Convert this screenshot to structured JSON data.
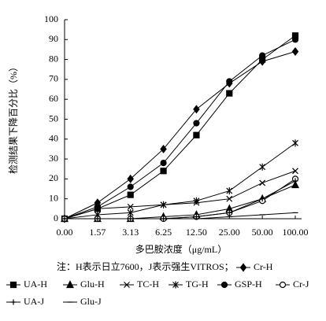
{
  "chart_data": {
    "type": "line",
    "y_label": "检测结果下降百分比（%）",
    "x_label": "多巴胺浓度（μg/mL）",
    "note": "注：H表示日立7600，J表示强生VITROS；",
    "categories": [
      "0.00",
      "1.57",
      "3.13",
      "6.25",
      "12.50",
      "25.00",
      "50.00",
      "100.00"
    ],
    "ylim": [
      0,
      100
    ],
    "yticks": [
      0,
      10,
      20,
      30,
      40,
      50,
      60,
      70,
      80,
      90,
      100
    ],
    "series": [
      {
        "name": "Cr-H",
        "color": "#000000",
        "marker": "diamond",
        "values": [
          0,
          8,
          20,
          35,
          55,
          68,
          79,
          84
        ]
      },
      {
        "name": "UA-H",
        "color": "#000000",
        "marker": "square",
        "values": [
          0,
          5,
          12,
          24,
          42,
          63,
          80,
          92
        ]
      },
      {
        "name": "Glu-H",
        "color": "#000000",
        "marker": "triangle",
        "values": [
          0,
          0,
          0,
          1,
          2,
          5,
          10,
          17
        ]
      },
      {
        "name": "TC-H",
        "color": "#000000",
        "marker": "x",
        "values": [
          0,
          5,
          6,
          7,
          8,
          10,
          18,
          24
        ]
      },
      {
        "name": "TG-H",
        "color": "#000000",
        "marker": "asterisk",
        "values": [
          0,
          2,
          3,
          7,
          9,
          14,
          26,
          38
        ]
      },
      {
        "name": "GSP-H",
        "color": "#000000",
        "marker": "circle",
        "values": [
          0,
          6,
          16,
          28,
          48,
          69,
          82,
          90
        ]
      },
      {
        "name": "Cr-J",
        "color": "#000000",
        "marker": "open-circle",
        "values": [
          0,
          0,
          0,
          0,
          1,
          3,
          9,
          20
        ]
      },
      {
        "name": "UA-J",
        "color": "#000000",
        "marker": "plus",
        "values": [
          0,
          0,
          0,
          0,
          1,
          3,
          10,
          19
        ]
      },
      {
        "name": "Glu-J",
        "color": "#000000",
        "marker": "dash",
        "values": [
          0,
          0,
          0,
          0,
          0,
          1,
          2,
          3
        ]
      }
    ]
  }
}
